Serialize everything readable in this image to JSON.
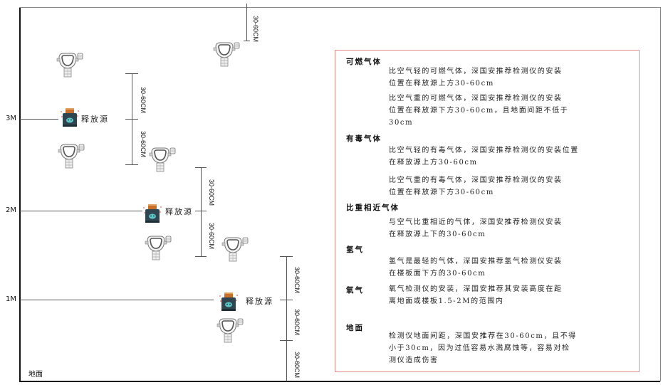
{
  "levels": {
    "m3": "3M",
    "m2": "2M",
    "m1": "1M",
    "ground": "地面"
  },
  "source_label": "释放源",
  "dimension_label": "30-60CM",
  "watermark": "SINGOAN 深国安",
  "info": {
    "combustible": {
      "heading": "可燃气体",
      "light": [
        "比空气轻的可燃气体，深国安推荐检测仪的安装",
        "位置在释放源上方30-60cm"
      ],
      "heavy": [
        "比空气重的可燃气体，深国安推荐检测仪的安装",
        "位置在释放源下方30-60cm，且地面间距不低于",
        "30cm"
      ]
    },
    "toxic": {
      "heading": "有毒气体",
      "light": [
        "比空气轻的有毒气体，深国安推荐检测仪的安装位置",
        "在释放源上方30-60cm"
      ],
      "heavy": [
        "比空气重的有毒气体，深国安推荐检测仪的安装",
        "位置在释放源下方30-60cm"
      ]
    },
    "similar": {
      "heading": "比重相近气体",
      "text": [
        "与空气比重相近的气体，深国安推荐检测仪安装",
        "在释放源上下的30-60cm"
      ]
    },
    "hydrogen": {
      "heading": "氢气",
      "text": [
        "氢气是最轻的气体，深国安推荐氢气检测仪安装",
        "在楼板面下方的30-60cm"
      ]
    },
    "oxygen": {
      "heading": "氧气",
      "text": [
        "氧气检测仪的安装，深国安推荐其安装高度在距",
        "离地面或楼板1.5-2M的范围内"
      ]
    },
    "ground": {
      "heading": "地面",
      "text": [
        "检测仪地面间距，深国安推荐在30-60cm，且不得",
        "小于30cm，因为过低容易水溅腐蚀等，容易对检",
        "测仪造成伤害"
      ]
    }
  },
  "colors": {
    "box_border": "#e58a8a",
    "source_body": "#2f4650",
    "source_lid": "#c8702a",
    "source_face": "#5ec8c8"
  }
}
